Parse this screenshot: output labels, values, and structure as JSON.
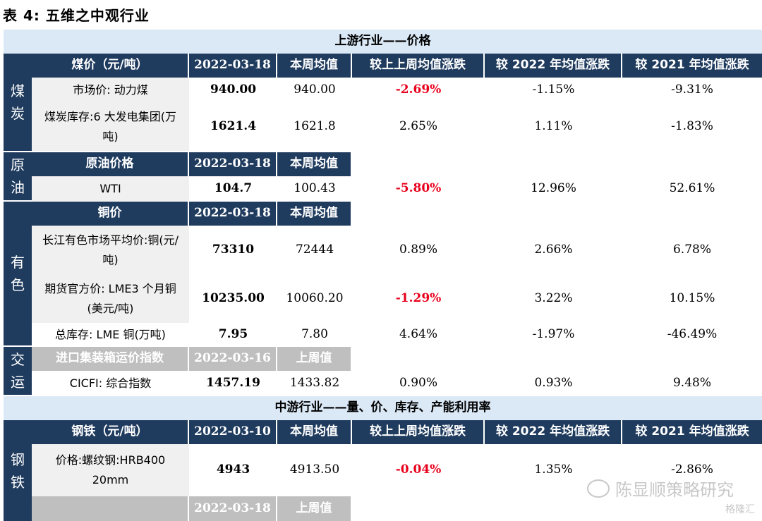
{
  "title": "表 4:  五维之中观行业",
  "bands": {
    "upstream": "上游行业——价格",
    "midstream": "中游行业——量、价、库存、产能利用率"
  },
  "side": {
    "coal": [
      "煤",
      "炭"
    ],
    "oil": [
      "原",
      "油"
    ],
    "metal": [
      "有",
      "色"
    ],
    "transport": [
      "交",
      "运"
    ],
    "steel": [
      "钢",
      "铁"
    ]
  },
  "coal": {
    "header": [
      "煤价（元/吨）",
      "2022-03-18",
      "本周均值",
      "较上上周均值涨跌",
      "较 2022 年均值涨跌",
      "较 2021 年均值涨跌"
    ],
    "rows": [
      {
        "label": "市场价: 动力煤",
        "cur": "940.00",
        "avg": "940.00",
        "wow": "-2.69%",
        "y22": "-1.15%",
        "y21": "-9.31%"
      },
      {
        "label": "煤炭库存:6 大发电集团(万吨)",
        "cur": "1621.4",
        "avg": "1621.8",
        "wow": "2.65%",
        "y22": "1.11%",
        "y21": "-1.83%"
      }
    ]
  },
  "oil": {
    "header": [
      "原油价格",
      "2022-03-18",
      "本周均值"
    ],
    "rows": [
      {
        "label": "WTI",
        "cur": "104.7",
        "avg": "100.43",
        "wow": "-5.80%",
        "y22": "12.96%",
        "y21": "52.61%"
      }
    ]
  },
  "metal": {
    "header": [
      "铜价",
      "2022-03-18",
      "本周均值"
    ],
    "rows": [
      {
        "label": "长江有色市场平均价:铜(元/吨)",
        "cur": "73310",
        "avg": "72444",
        "wow": "0.89%",
        "y22": "2.66%",
        "y21": "6.78%"
      },
      {
        "label": "期货官方价: LME3 个月铜(美元/吨)",
        "cur": "10235.00",
        "avg": "10060.20",
        "wow": "-1.29%",
        "y22": "3.22%",
        "y21": "10.15%"
      },
      {
        "label": "总库存: LME 铜(万吨)",
        "cur": "7.95",
        "avg": "7.80",
        "wow": "4.64%",
        "y22": "-1.97%",
        "y21": "-46.49%"
      }
    ]
  },
  "transport": {
    "header": [
      "进口集装箱运价指数",
      "2022-03-16",
      "上周值"
    ],
    "rows": [
      {
        "label": "CICFI: 综合指数",
        "cur": "1457.19",
        "avg": "1433.82",
        "wow": "0.90%",
        "y22": "0.93%",
        "y21": "9.48%"
      }
    ]
  },
  "steel": {
    "header": [
      "钢铁（元/吨）",
      "2022-03-10",
      "本周均值",
      "较上上周均值涨跌",
      "较 2022 年均值涨跌",
      "较 2021 年均值涨跌"
    ],
    "rows": [
      {
        "label": "价格:螺纹钢:HRB400 20mm",
        "cur": "4943",
        "avg": "4913.50",
        "wow": "-0.04%",
        "y22": "1.35%",
        "y21": "-2.86%"
      }
    ],
    "subheader": [
      "2022-03-18",
      "上周值"
    ]
  },
  "watermark": {
    "main": "陈显顺策略研究",
    "sub": "格隆汇"
  }
}
